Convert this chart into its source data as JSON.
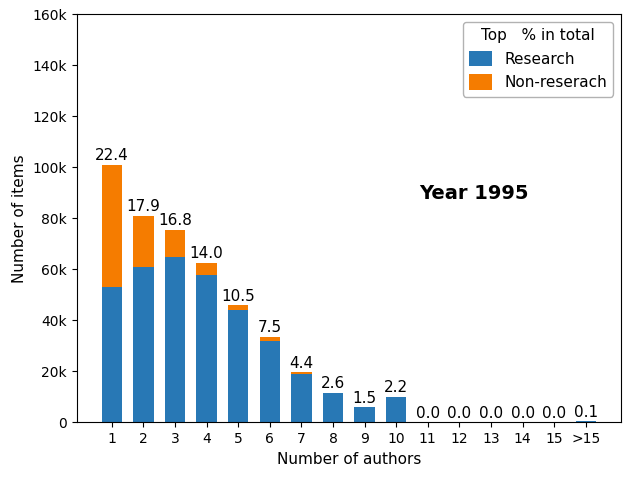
{
  "categories": [
    "1",
    "2",
    "3",
    "4",
    "5",
    "6",
    "7",
    "8",
    "9",
    "10",
    "11",
    "12",
    "13",
    "14",
    "15",
    ">15"
  ],
  "research_values": [
    53000,
    61000,
    65000,
    58000,
    44000,
    32000,
    19000,
    11500,
    6000,
    10000,
    0,
    0,
    0,
    0,
    0,
    450
  ],
  "nonresearch_values": [
    48000,
    20000,
    10500,
    4500,
    2000,
    1500,
    700,
    200,
    0,
    0,
    0,
    0,
    0,
    0,
    0,
    0
  ],
  "percentages": [
    "22.4",
    "17.9",
    "16.8",
    "14.0",
    "10.5",
    "7.5",
    "4.4",
    "2.6",
    "1.5",
    "2.2",
    "0.0",
    "0.0",
    "0.0",
    "0.0",
    "0.0",
    "0.1"
  ],
  "research_color": "#2878b5",
  "nonresearch_color": "#f57c00",
  "title": "Year 1995",
  "xlabel": "Number of authors",
  "ylabel": "Number of items",
  "ylim": [
    0,
    160000
  ],
  "yticks": [
    0,
    20000,
    40000,
    60000,
    80000,
    100000,
    120000,
    140000,
    160000
  ],
  "legend_title": "Top   % in total",
  "legend_labels": [
    "Research",
    "Non-reserach"
  ],
  "title_fontsize": 14,
  "label_fontsize": 11,
  "annot_fontsize": 11,
  "tick_fontsize": 10,
  "bar_width": 0.65
}
